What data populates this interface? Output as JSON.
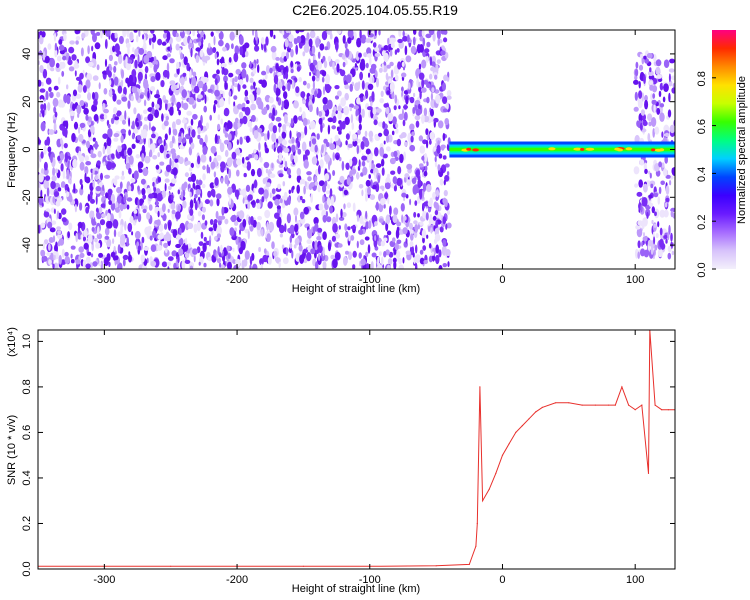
{
  "title": "C2E6.2025.104.05.55.R19",
  "colors": {
    "snr_line": "#e8302c",
    "cbar": [
      "#f3f0fb",
      "#d7c2fb",
      "#a66bff",
      "#6a1bff",
      "#3b00ff",
      "#0044ff",
      "#00d0ff",
      "#00ff80",
      "#37ff00",
      "#c8ff00",
      "#ffe100",
      "#ff8a00",
      "#ff2a00",
      "#ff0080"
    ]
  },
  "chart_data": [
    {
      "type": "heatmap",
      "title": "C2E6.2025.104.05.55.R19",
      "xlabel": "Height of straight line (km)",
      "ylabel": "Frequency (Hz)",
      "xlim": [
        -350,
        130
      ],
      "ylim": [
        -50,
        50
      ],
      "xticks": [
        "-300",
        "-200",
        "-100",
        "0",
        "100"
      ],
      "yticks": [
        "-40",
        "-20",
        "0",
        "20",
        "40"
      ],
      "colorbar": {
        "label": "Normalized spectral amplitude",
        "range": [
          0,
          1
        ],
        "ticks": [
          "0.0",
          "0.2",
          "0.4",
          "0.6",
          "0.8"
        ]
      },
      "regions": [
        {
          "x_range": [
            -350,
            -40
          ],
          "description_level": 0.2,
          "freq_range": [
            -50,
            50
          ]
        },
        {
          "x_range": [
            -40,
            130
          ],
          "description_level": 0.85,
          "freq_range": [
            -2,
            2
          ]
        },
        {
          "x_range": [
            100,
            130
          ],
          "description_level": 0.2,
          "freq_range": [
            -45,
            40
          ]
        }
      ]
    },
    {
      "type": "line",
      "xlabel": "Height of straight line (km)",
      "ylabel": "SNR (10 * v/v)",
      "y_multiplier": "(x10⁴)",
      "xlim": [
        -350,
        130
      ],
      "ylim": [
        0,
        1.05
      ],
      "xticks": [
        "-300",
        "-200",
        "-100",
        "0",
        "100"
      ],
      "yticks": [
        "0.0",
        "0.2",
        "0.4",
        "0.6",
        "0.8",
        "1.0"
      ],
      "series": [
        {
          "x": [
            -350,
            -300,
            -250,
            -200,
            -150,
            -100,
            -50,
            -25,
            -20,
            -19,
            -17,
            -15,
            -10,
            -5,
            0,
            5,
            10,
            15,
            20,
            25,
            30,
            40,
            50,
            60,
            70,
            80,
            85,
            90,
            95,
            100,
            105,
            110,
            111,
            115,
            120,
            125,
            130
          ],
          "y": [
            0.012,
            0.012,
            0.012,
            0.012,
            0.012,
            0.012,
            0.014,
            0.02,
            0.1,
            0.2,
            0.8,
            0.3,
            0.35,
            0.42,
            0.5,
            0.55,
            0.6,
            0.63,
            0.66,
            0.69,
            0.71,
            0.73,
            0.73,
            0.72,
            0.72,
            0.72,
            0.72,
            0.8,
            0.72,
            0.7,
            0.72,
            0.42,
            1.05,
            0.72,
            0.7,
            0.7,
            0.7
          ]
        }
      ]
    }
  ]
}
